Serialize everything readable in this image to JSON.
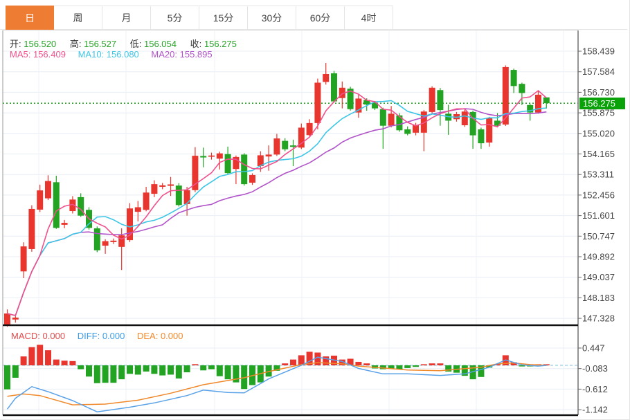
{
  "tabs": [
    {
      "id": "day",
      "label": "日",
      "active": true
    },
    {
      "id": "week",
      "label": "周",
      "active": false
    },
    {
      "id": "month",
      "label": "月",
      "active": false
    },
    {
      "id": "5min",
      "label": "5分",
      "active": false
    },
    {
      "id": "15min",
      "label": "15分",
      "active": false
    },
    {
      "id": "30min",
      "label": "30分",
      "active": false
    },
    {
      "id": "60min",
      "label": "60分",
      "active": false
    },
    {
      "id": "4hour",
      "label": "4时",
      "active": false
    }
  ],
  "ohlc": {
    "open_label": "开:",
    "open": "156.520",
    "high_label": "高:",
    "high": "156.527",
    "low_label": "低:",
    "low": "156.054",
    "close_label": "收:",
    "close": "156.275"
  },
  "ma": {
    "ma5_label": "MA5:",
    "ma5": "156.409",
    "ma10_label": "MA10:",
    "ma10": "156.080",
    "ma20_label": "MA20:",
    "ma20": "155.895"
  },
  "macd_header": {
    "macd_label": "MACD:",
    "macd": "0.000",
    "diff_label": "DIFF:",
    "diff": "0.000",
    "dea_label": "DEA:",
    "dea": "0.000"
  },
  "price_badge": "156.275",
  "colors": {
    "up": "#e8352e",
    "down": "#22a322",
    "ma5": "#f0508c",
    "ma10": "#3ec6e6",
    "ma20": "#b153c9",
    "diff_line": "#5aa2e8",
    "dea_line": "#f0882a",
    "ref_line": "#2ca02c",
    "zero_line": "#a5d5ee",
    "badge_bg": "#09a309",
    "tab_active": "#ef7c33",
    "grid": "#e8eef5",
    "grid_vertical": "#eef2f8",
    "axis_text": "#444",
    "frame_dark": "#111",
    "frame_side": "#666"
  },
  "chart_data": {
    "type": "candlestick+macd",
    "title": "",
    "main_panel": {
      "type": "candlestick",
      "axis_top_price": 158.439,
      "axis_bottom_price": 147.328,
      "price_ticks": [
        "158.439",
        "157.584",
        "156.730",
        "155.875",
        "155.020",
        "154.165",
        "153.311",
        "152.456",
        "151.601",
        "150.747",
        "149.892",
        "149.037",
        "148.183",
        "147.328"
      ],
      "reference_price": 156.275,
      "ma_overlays": [
        {
          "period": 5,
          "last": "156.409"
        },
        {
          "period": 10,
          "last": "156.080"
        },
        {
          "period": 20,
          "last": "155.895"
        }
      ],
      "candles_ohlc": [
        [
          147.04,
          147.7,
          146.98,
          147.53
        ],
        [
          147.28,
          147.5,
          147.15,
          147.36
        ],
        [
          149.28,
          150.49,
          149.0,
          150.32
        ],
        [
          150.21,
          152.03,
          150.1,
          151.88
        ],
        [
          151.85,
          152.89,
          151.75,
          152.65
        ],
        [
          152.32,
          153.28,
          152.25,
          153.04
        ],
        [
          152.99,
          153.26,
          151.05,
          151.09
        ],
        [
          151.22,
          151.42,
          151.08,
          151.3
        ],
        [
          151.79,
          152.41,
          151.69,
          152.27
        ],
        [
          152.37,
          152.53,
          151.55,
          151.6
        ],
        [
          151.84,
          151.95,
          151.02,
          151.09
        ],
        [
          151.07,
          151.15,
          150.08,
          150.16
        ],
        [
          150.35,
          150.62,
          150.01,
          150.54
        ],
        [
          150.5,
          150.65,
          150.42,
          150.56
        ],
        [
          150.3,
          151.07,
          149.34,
          150.78
        ],
        [
          150.58,
          152.12,
          150.5,
          151.9
        ],
        [
          151.76,
          152.21,
          151.36,
          151.95
        ],
        [
          151.84,
          152.8,
          151.78,
          152.56
        ],
        [
          152.51,
          153.07,
          152.37,
          152.91
        ],
        [
          152.8,
          152.96,
          152.7,
          152.86
        ],
        [
          152.84,
          153.21,
          152.42,
          152.9
        ],
        [
          152.85,
          152.95,
          151.98,
          152.04
        ],
        [
          152.08,
          152.8,
          151.6,
          152.66
        ],
        [
          152.66,
          154.45,
          152.58,
          154.09
        ],
        [
          154.08,
          154.43,
          153.61,
          154.02
        ],
        [
          154.05,
          154.22,
          153.93,
          154.1
        ],
        [
          153.97,
          154.26,
          153.52,
          154.19
        ],
        [
          154.16,
          154.47,
          153.3,
          153.37
        ],
        [
          153.54,
          154.1,
          152.91,
          154.04
        ],
        [
          154.14,
          154.2,
          152.85,
          152.91
        ],
        [
          152.97,
          153.36,
          152.88,
          153.29
        ],
        [
          153.66,
          154.28,
          153.42,
          154.11
        ],
        [
          154.06,
          154.52,
          153.47,
          154.14
        ],
        [
          154.14,
          155.0,
          154.08,
          154.81
        ],
        [
          154.71,
          154.82,
          154.28,
          154.36
        ],
        [
          154.52,
          154.76,
          153.66,
          154.46
        ],
        [
          154.43,
          155.43,
          154.37,
          155.26
        ],
        [
          154.95,
          155.61,
          154.9,
          155.45
        ],
        [
          155.45,
          157.3,
          155.19,
          157.13
        ],
        [
          157.16,
          157.95,
          157.05,
          157.49
        ],
        [
          157.52,
          157.62,
          156.3,
          156.35
        ],
        [
          156.49,
          157.18,
          156.06,
          156.92
        ],
        [
          156.88,
          156.96,
          155.97,
          156.03
        ],
        [
          155.89,
          156.63,
          155.67,
          156.47
        ],
        [
          156.41,
          156.48,
          155.96,
          156.22
        ],
        [
          156.28,
          156.36,
          155.99,
          156.06
        ],
        [
          156.03,
          156.09,
          154.38,
          155.34
        ],
        [
          155.34,
          156.16,
          155.27,
          155.84
        ],
        [
          155.77,
          155.86,
          155.09,
          155.15
        ],
        [
          155.19,
          155.31,
          154.94,
          155.0
        ],
        [
          155.05,
          155.46,
          154.94,
          155.36
        ],
        [
          155.05,
          155.99,
          154.28,
          155.93
        ],
        [
          155.91,
          156.98,
          155.84,
          156.92
        ],
        [
          156.82,
          156.91,
          155.34,
          155.99
        ],
        [
          155.84,
          156.21,
          154.96,
          155.55
        ],
        [
          155.61,
          155.91,
          155.51,
          155.82
        ],
        [
          155.36,
          156.01,
          155.29,
          155.93
        ],
        [
          155.91,
          155.97,
          154.38,
          154.94
        ],
        [
          155.19,
          155.26,
          154.38,
          154.61
        ],
        [
          154.64,
          155.71,
          154.47,
          155.65
        ],
        [
          155.55,
          155.87,
          155.27,
          155.34
        ],
        [
          155.39,
          157.85,
          155.33,
          157.78
        ],
        [
          157.66,
          157.71,
          156.7,
          156.99
        ],
        [
          157.08,
          157.13,
          156.2,
          156.7
        ],
        [
          156.2,
          156.26,
          155.55,
          155.89
        ],
        [
          155.89,
          156.78,
          155.84,
          156.63
        ],
        [
          156.52,
          156.527,
          156.054,
          156.275
        ]
      ]
    },
    "macd_panel": {
      "type": "bar+line",
      "value_ticks": [
        "0.447",
        "-0.083",
        "-0.612",
        "-1.142"
      ],
      "histogram": [
        -0.62,
        -0.32,
        0.23,
        0.47,
        0.53,
        0.39,
        0.15,
        0.12,
        0.11,
        -0.1,
        -0.29,
        -0.46,
        -0.45,
        -0.45,
        -0.36,
        -0.22,
        -0.24,
        -0.16,
        -0.22,
        -0.26,
        -0.24,
        -0.34,
        -0.18,
        0.03,
        -0.13,
        -0.1,
        -0.28,
        -0.36,
        -0.44,
        -0.61,
        -0.51,
        -0.44,
        -0.29,
        -0.14,
        0.05,
        0.15,
        0.26,
        0.35,
        0.33,
        0.23,
        0.25,
        0.15,
        0.17,
        0.09,
        0.05,
        -0.08,
        -0.1,
        -0.08,
        -0.1,
        -0.07,
        -0.04,
        0.02,
        0.05,
        0.05,
        -0.16,
        -0.19,
        -0.27,
        -0.36,
        -0.3,
        -0.06,
        0.03,
        0.26,
        0.08,
        -0.02,
        -0.02,
        0.02,
        0.005
      ],
      "diff_points": [
        [
          0,
          -1.13
        ],
        [
          1,
          -0.85
        ],
        [
          3,
          -0.55
        ],
        [
          5,
          -0.68
        ],
        [
          8,
          -0.91
        ],
        [
          11,
          -1.2
        ],
        [
          15,
          -1.08
        ],
        [
          18,
          -0.97
        ],
        [
          22,
          -0.78
        ],
        [
          24,
          -0.64
        ],
        [
          27,
          -0.7
        ],
        [
          29,
          -0.71
        ],
        [
          32,
          -0.35
        ],
        [
          36,
          0.0
        ],
        [
          38,
          0.21
        ],
        [
          41,
          0.1
        ],
        [
          43,
          -0.08
        ],
        [
          46,
          -0.22
        ],
        [
          49,
          -0.22
        ],
        [
          53,
          -0.26
        ],
        [
          56,
          -0.22
        ],
        [
          59,
          -0.05
        ],
        [
          61,
          0.14
        ],
        [
          63,
          0.01
        ],
        [
          65,
          -0.02
        ],
        [
          66,
          0.0
        ]
      ],
      "dea_points": [
        [
          0,
          -0.8
        ],
        [
          2,
          -0.74
        ],
        [
          4,
          -0.78
        ],
        [
          8,
          -1.02
        ],
        [
          12,
          -1.0
        ],
        [
          16,
          -0.9
        ],
        [
          20,
          -0.72
        ],
        [
          24,
          -0.5
        ],
        [
          29,
          -0.32
        ],
        [
          32,
          -0.16
        ],
        [
          36,
          0.02
        ],
        [
          38,
          0.07
        ],
        [
          41,
          0.04
        ],
        [
          43,
          -0.02
        ],
        [
          46,
          -0.07
        ],
        [
          49,
          -0.12
        ],
        [
          53,
          -0.14
        ],
        [
          58,
          -0.05
        ],
        [
          60,
          0.04
        ],
        [
          62,
          0.06
        ],
        [
          64,
          0.02
        ],
        [
          66,
          0.0
        ]
      ]
    }
  }
}
